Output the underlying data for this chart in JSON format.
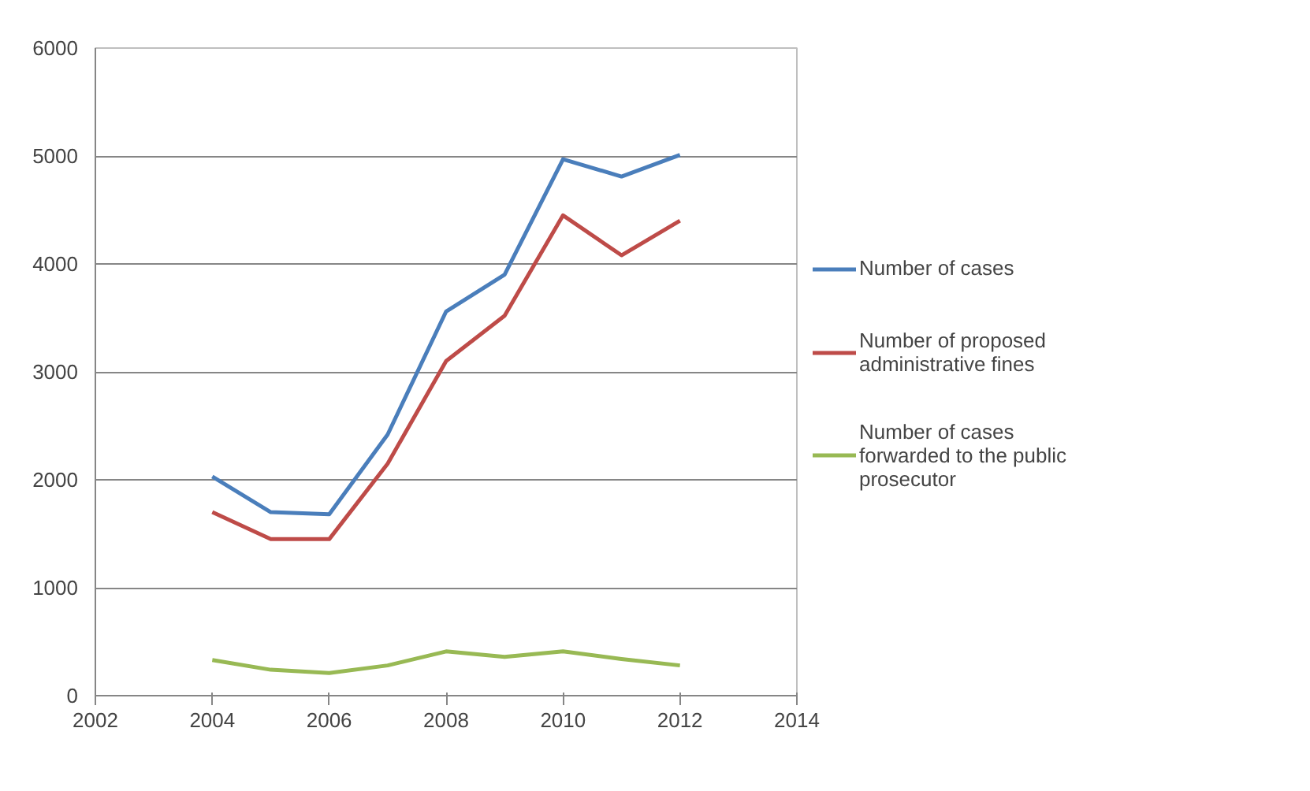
{
  "chart_data": {
    "type": "line",
    "x": [
      2004,
      2005,
      2006,
      2007,
      2008,
      2009,
      2010,
      2011,
      2012
    ],
    "series": [
      {
        "name": "Number of cases",
        "color": "#4a7ebb",
        "values": [
          2030,
          1700,
          1680,
          2420,
          3560,
          3900,
          4970,
          4810,
          5010
        ]
      },
      {
        "name": "Number of proposed administrative fines",
        "color": "#be4b48",
        "values": [
          1700,
          1450,
          1450,
          2150,
          3100,
          3520,
          4450,
          4080,
          4400
        ]
      },
      {
        "name": "Number of cases forwarded to the public prosecutor",
        "color": "#98b954",
        "values": [
          330,
          240,
          210,
          280,
          410,
          360,
          410,
          340,
          280
        ]
      }
    ],
    "xlim": [
      2002,
      2014
    ],
    "xticks": [
      2002,
      2004,
      2006,
      2008,
      2010,
      2012,
      2014
    ],
    "ylim": [
      0,
      6000
    ],
    "yticks": [
      0,
      1000,
      2000,
      3000,
      4000,
      5000,
      6000
    ],
    "grid": "y",
    "legend": "right",
    "marker": "none",
    "line_style": "solid"
  }
}
